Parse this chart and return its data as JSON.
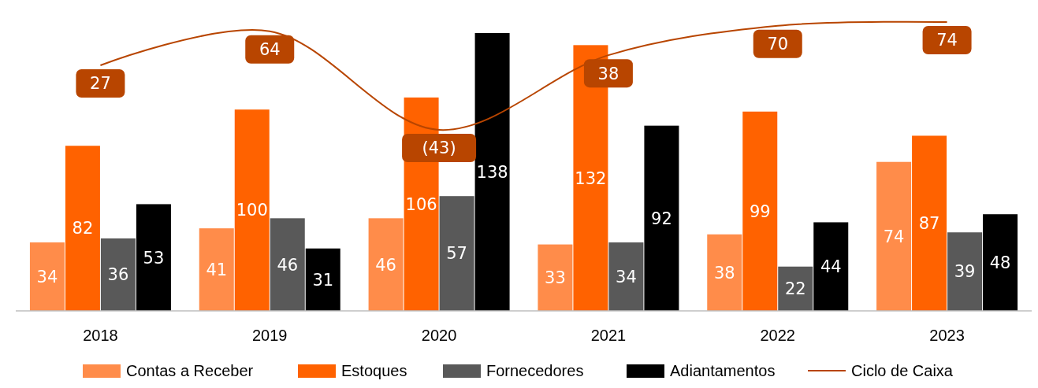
{
  "chart_data": {
    "type": "bar",
    "categories": [
      "2018",
      "2019",
      "2020",
      "2021",
      "2022",
      "2023"
    ],
    "series": [
      {
        "name": "Contas a Receber",
        "color": "#ff8c4a",
        "values": [
          34,
          41,
          46,
          33,
          38,
          74
        ]
      },
      {
        "name": "Estoques",
        "color": "#ff6200",
        "values": [
          82,
          100,
          106,
          132,
          99,
          87
        ]
      },
      {
        "name": "Fornecedores",
        "color": "#595959",
        "values": [
          36,
          46,
          57,
          34,
          22,
          39
        ]
      },
      {
        "name": "Adiantamentos",
        "color": "#000000",
        "values": [
          53,
          31,
          138,
          92,
          44,
          48
        ]
      },
      {
        "name": "Ciclo de Caixa",
        "type": "line",
        "axis": "y2",
        "color": "#b84500",
        "values": [
          27,
          64,
          -43,
          38,
          70,
          74
        ],
        "value_labels": [
          "27",
          "64",
          "(43)",
          "38",
          "70",
          "74"
        ]
      }
    ],
    "data_labels": true,
    "tick_labels": "x",
    "legend": "bottom"
  }
}
